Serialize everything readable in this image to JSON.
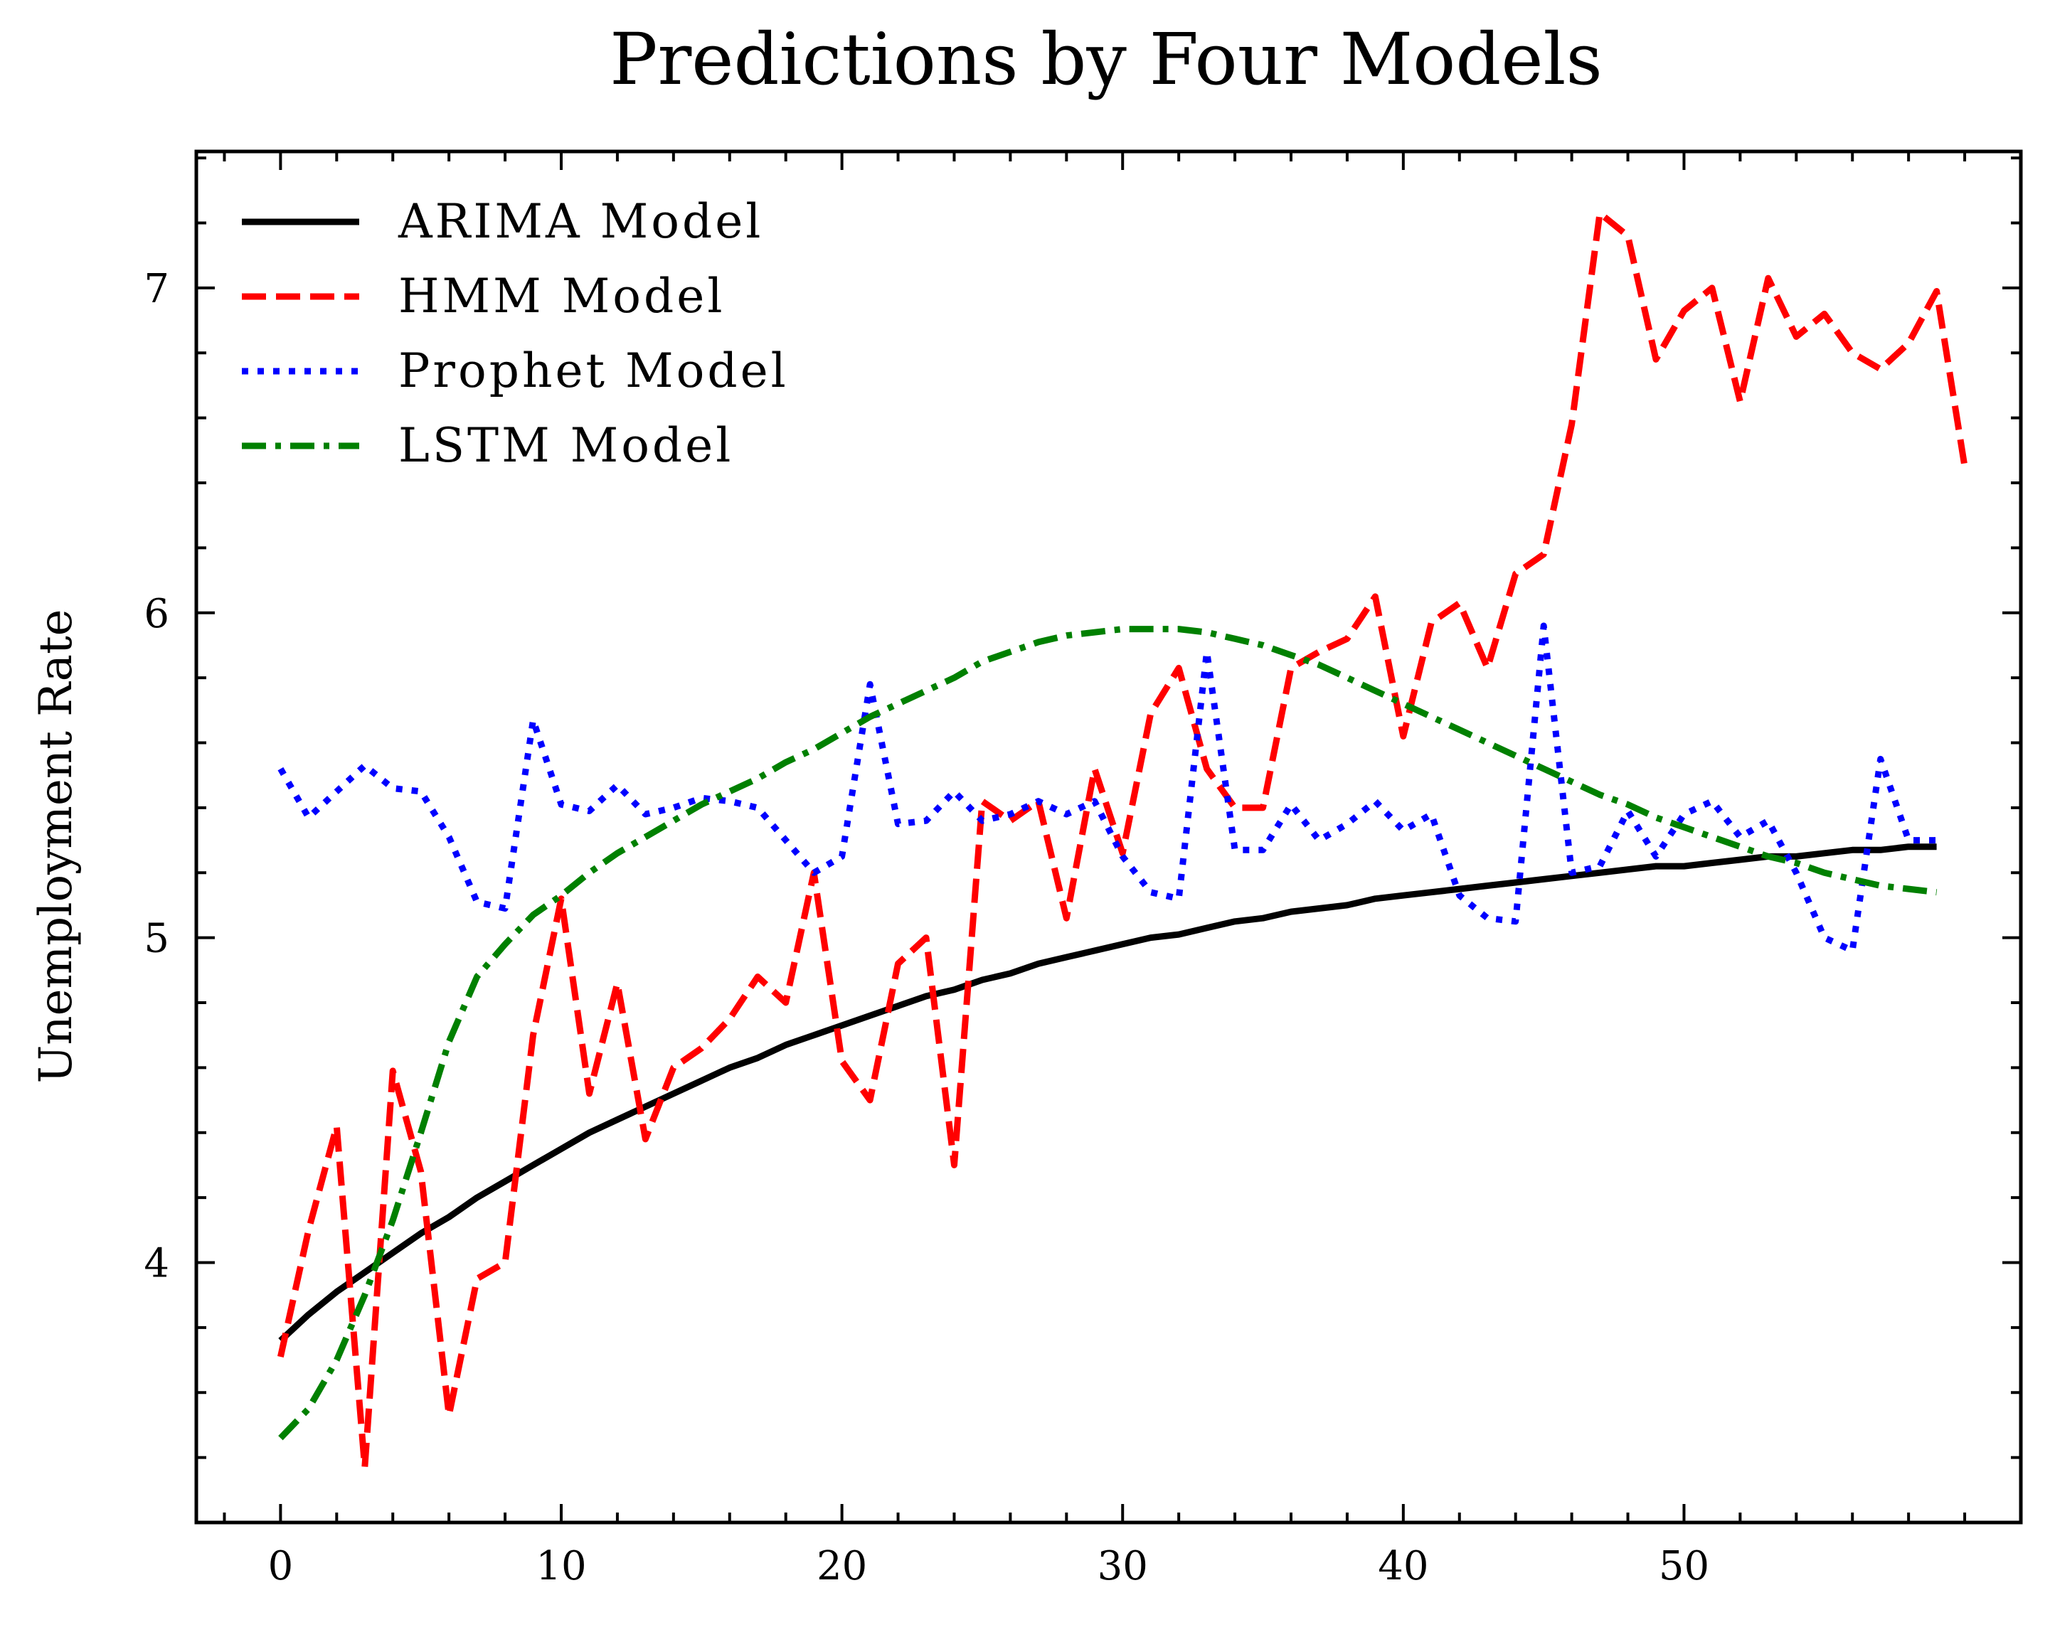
{
  "chart_data": {
    "type": "line",
    "title": "Predictions by Four Models",
    "xlabel": "",
    "ylabel": "Unemployment Rate",
    "xlim": [
      -3,
      62
    ],
    "ylim": [
      3.2,
      7.42
    ],
    "x_ticks": [
      0,
      10,
      20,
      30,
      40,
      50
    ],
    "y_ticks": [
      4,
      5,
      6,
      7
    ],
    "x_minor_step": 2,
    "y_minor_step": 0.2,
    "grid": false,
    "legend_position": "top-left",
    "series": [
      {
        "name": "ARIMA Model",
        "color": "#000000",
        "style": "solid",
        "x": [
          0,
          1,
          2,
          3,
          4,
          5,
          6,
          7,
          8,
          9,
          10,
          11,
          12,
          13,
          14,
          15,
          16,
          17,
          18,
          19,
          20,
          21,
          22,
          23,
          24,
          25,
          26,
          27,
          28,
          29,
          30,
          31,
          32,
          33,
          34,
          35,
          36,
          37,
          38,
          39,
          40,
          41,
          42,
          43,
          44,
          45,
          46,
          47,
          48,
          49,
          50,
          51,
          52,
          53,
          54,
          55,
          56,
          57,
          58,
          59
        ],
        "values": [
          3.76,
          3.84,
          3.91,
          3.97,
          4.03,
          4.09,
          4.14,
          4.2,
          4.25,
          4.3,
          4.35,
          4.4,
          4.44,
          4.48,
          4.52,
          4.56,
          4.6,
          4.63,
          4.67,
          4.7,
          4.73,
          4.76,
          4.79,
          4.82,
          4.84,
          4.87,
          4.89,
          4.92,
          4.94,
          4.96,
          4.98,
          5.0,
          5.01,
          5.03,
          5.05,
          5.06,
          5.08,
          5.09,
          5.1,
          5.12,
          5.13,
          5.14,
          5.15,
          5.16,
          5.17,
          5.18,
          5.19,
          5.2,
          5.21,
          5.22,
          5.22,
          5.23,
          5.24,
          5.25,
          5.25,
          5.26,
          5.27,
          5.27,
          5.28,
          5.28
        ]
      },
      {
        "name": "HMM Model",
        "color": "#ff0000",
        "style": "dashed",
        "x": [
          0,
          1,
          2,
          3,
          4,
          5,
          6,
          7,
          8,
          9,
          10,
          11,
          12,
          13,
          14,
          15,
          16,
          17,
          18,
          19,
          20,
          21,
          22,
          23,
          24,
          25,
          26,
          27,
          28,
          29,
          30,
          31,
          32,
          33,
          34,
          35,
          36,
          37,
          38,
          39,
          40,
          41,
          42,
          43,
          44,
          45,
          46,
          47,
          48,
          49,
          50,
          51,
          52,
          53,
          54,
          55,
          56,
          57,
          58,
          59,
          60
        ],
        "values": [
          3.71,
          4.1,
          4.42,
          3.37,
          4.59,
          4.28,
          3.53,
          3.95,
          4.0,
          4.7,
          5.12,
          4.52,
          4.86,
          4.38,
          4.6,
          4.66,
          4.75,
          4.88,
          4.8,
          5.2,
          4.62,
          4.5,
          4.92,
          5.0,
          4.3,
          5.42,
          5.36,
          5.42,
          5.06,
          5.52,
          5.26,
          5.69,
          5.83,
          5.52,
          5.4,
          5.4,
          5.83,
          5.88,
          5.92,
          6.05,
          5.62,
          5.97,
          6.03,
          5.83,
          6.12,
          6.18,
          6.58,
          7.23,
          7.16,
          6.78,
          6.93,
          7.0,
          6.65,
          7.03,
          6.85,
          6.92,
          6.8,
          6.75,
          6.83,
          6.99,
          6.45
        ]
      },
      {
        "name": "Prophet Model",
        "color": "#0000ff",
        "style": "dotted",
        "x": [
          0,
          1,
          2,
          3,
          4,
          5,
          6,
          7,
          8,
          9,
          10,
          11,
          12,
          13,
          14,
          15,
          16,
          17,
          18,
          19,
          20,
          21,
          22,
          23,
          24,
          25,
          26,
          27,
          28,
          29,
          30,
          31,
          32,
          33,
          34,
          35,
          36,
          37,
          38,
          39,
          40,
          41,
          42,
          43,
          44,
          45,
          46,
          47,
          48,
          49,
          50,
          51,
          52,
          53,
          54,
          55,
          56,
          57,
          58,
          59
        ],
        "values": [
          5.52,
          5.37,
          5.45,
          5.53,
          5.46,
          5.45,
          5.31,
          5.11,
          5.09,
          5.67,
          5.41,
          5.39,
          5.47,
          5.38,
          5.4,
          5.43,
          5.42,
          5.4,
          5.3,
          5.2,
          5.25,
          5.78,
          5.35,
          5.36,
          5.45,
          5.36,
          5.38,
          5.42,
          5.38,
          5.42,
          5.25,
          5.14,
          5.12,
          5.88,
          5.27,
          5.27,
          5.41,
          5.3,
          5.35,
          5.42,
          5.33,
          5.38,
          5.13,
          5.06,
          5.05,
          5.96,
          5.2,
          5.22,
          5.39,
          5.25,
          5.38,
          5.42,
          5.31,
          5.36,
          5.2,
          5.0,
          4.96,
          5.55,
          5.3,
          5.3
        ]
      },
      {
        "name": "LSTM Model",
        "color": "#008000",
        "style": "dashdot",
        "x": [
          0,
          1,
          2,
          3,
          4,
          5,
          6,
          7,
          8,
          9,
          10,
          11,
          12,
          13,
          14,
          15,
          16,
          17,
          18,
          19,
          20,
          21,
          22,
          23,
          24,
          25,
          26,
          27,
          28,
          29,
          30,
          31,
          32,
          33,
          34,
          35,
          36,
          37,
          38,
          39,
          40,
          41,
          42,
          43,
          44,
          45,
          46,
          47,
          48,
          49,
          50,
          51,
          52,
          53,
          54,
          55,
          56,
          57,
          58,
          59
        ],
        "values": [
          3.46,
          3.55,
          3.7,
          3.9,
          4.13,
          4.4,
          4.68,
          4.88,
          4.98,
          5.07,
          5.13,
          5.2,
          5.26,
          5.31,
          5.36,
          5.41,
          5.45,
          5.49,
          5.54,
          5.58,
          5.63,
          5.68,
          5.72,
          5.76,
          5.8,
          5.85,
          5.88,
          5.91,
          5.93,
          5.94,
          5.95,
          5.95,
          5.95,
          5.94,
          5.92,
          5.9,
          5.87,
          5.84,
          5.8,
          5.76,
          5.72,
          5.68,
          5.64,
          5.6,
          5.56,
          5.52,
          5.48,
          5.44,
          5.41,
          5.37,
          5.34,
          5.31,
          5.28,
          5.25,
          5.23,
          5.2,
          5.18,
          5.16,
          5.15,
          5.14
        ]
      }
    ]
  }
}
